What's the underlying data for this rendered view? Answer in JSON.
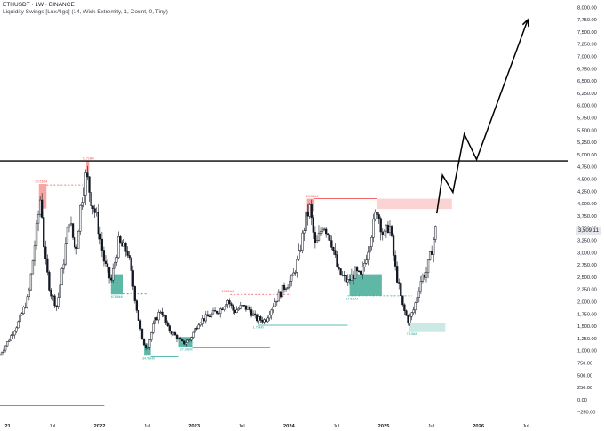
{
  "header": {
    "symbol_line": "ETHUSDT · 1W · BINANCE",
    "indicator_line": "Liquidity Swings [LuxAlgo] (14, Wick Extremity, 1, Count, 0, Tiny)"
  },
  "chart_data": {
    "type": "candlestick",
    "title": "ETHUSDT · 1W · BINANCE",
    "x_axis": {
      "tick_labels": [
        "21",
        "Jul",
        "2022",
        "Jul",
        "2023",
        "Jul",
        "2024",
        "Jul",
        "2025",
        "Jul",
        "2026",
        "Jul"
      ],
      "tick_times": [
        2021.0,
        2021.5,
        2022.0,
        2022.5,
        2023.0,
        2023.5,
        2024.0,
        2024.5,
        2025.0,
        2025.5,
        2026.0,
        2026.5
      ],
      "range": [
        2020.95,
        2026.95
      ]
    },
    "y_axis": {
      "range": [
        -400,
        8150
      ],
      "tick_values": [
        -250,
        0,
        250,
        500,
        750,
        1000,
        1250,
        1500,
        1750,
        2000,
        2250,
        2500,
        2750,
        3000,
        3250,
        3500,
        3750,
        4000,
        4250,
        4500,
        4750,
        5000,
        5250,
        5500,
        5750,
        6000,
        6250,
        6500,
        6750,
        7000,
        7250,
        7500,
        7750,
        8000
      ],
      "tick_labels": [
        "−250.00",
        "0.00",
        "250.00",
        "500.00",
        "750.00",
        "1,000.00",
        "1,250.00",
        "1,500.00",
        "1,750.00",
        "2,000.00",
        "2,250.00",
        "2,500.00",
        "2,750.00",
        "3,000.00",
        "3,250.00",
        "3,500.00",
        "3,750.00",
        "4,000.00",
        "4,250.00",
        "4,500.00",
        "4,750.00",
        "5,000.00",
        "5,250.00",
        "5,500.00",
        "5,750.00",
        "6,000.00",
        "6,250.00",
        "6,500.00",
        "6,750.00",
        "7,000.00",
        "7,250.00",
        "7,500.00",
        "7,750.00",
        "8,000.00"
      ]
    },
    "last_price": {
      "value": 3509.11,
      "label": "3,509.11"
    },
    "price_path": [
      [
        2020.95,
        920
      ],
      [
        2021.05,
        1250
      ],
      [
        2021.15,
        1600
      ],
      [
        2021.25,
        2100
      ],
      [
        2021.33,
        3400
      ],
      [
        2021.38,
        4200
      ],
      [
        2021.42,
        2900
      ],
      [
        2021.48,
        2200
      ],
      [
        2021.55,
        1900
      ],
      [
        2021.62,
        2800
      ],
      [
        2021.68,
        3700
      ],
      [
        2021.75,
        3000
      ],
      [
        2021.8,
        4000
      ],
      [
        2021.86,
        4600
      ],
      [
        2021.91,
        4100
      ],
      [
        2021.97,
        3700
      ],
      [
        2022.05,
        2800
      ],
      [
        2022.12,
        2400
      ],
      [
        2022.2,
        3200
      ],
      [
        2022.3,
        3000
      ],
      [
        2022.38,
        2000
      ],
      [
        2022.45,
        1200
      ],
      [
        2022.5,
        1050
      ],
      [
        2022.58,
        1600
      ],
      [
        2022.65,
        1850
      ],
      [
        2022.72,
        1450
      ],
      [
        2022.8,
        1300
      ],
      [
        2022.88,
        1150
      ],
      [
        2022.95,
        1220
      ],
      [
        2023.05,
        1600
      ],
      [
        2023.15,
        1700
      ],
      [
        2023.28,
        1850
      ],
      [
        2023.35,
        2050
      ],
      [
        2023.42,
        1800
      ],
      [
        2023.5,
        1900
      ],
      [
        2023.58,
        1850
      ],
      [
        2023.65,
        1650
      ],
      [
        2023.75,
        1620
      ],
      [
        2023.85,
        2000
      ],
      [
        2023.95,
        2300
      ],
      [
        2024.03,
        2450
      ],
      [
        2024.1,
        2900
      ],
      [
        2024.18,
        3700
      ],
      [
        2024.22,
        3900
      ],
      [
        2024.28,
        3100
      ],
      [
        2024.36,
        3600
      ],
      [
        2024.44,
        3300
      ],
      [
        2024.52,
        2600
      ],
      [
        2024.62,
        2400
      ],
      [
        2024.7,
        2600
      ],
      [
        2024.76,
        2500
      ],
      [
        2024.86,
        3300
      ],
      [
        2024.93,
        3900
      ],
      [
        2025.0,
        3300
      ],
      [
        2025.06,
        3600
      ],
      [
        2025.12,
        2700
      ],
      [
        2025.2,
        1900
      ],
      [
        2025.26,
        1600
      ],
      [
        2025.32,
        1850
      ],
      [
        2025.4,
        2500
      ],
      [
        2025.45,
        2600
      ],
      [
        2025.5,
        3000
      ],
      [
        2025.55,
        3509
      ]
    ],
    "zones": [
      {
        "name": "swing-high-2021a",
        "t0": 2021.36,
        "t1": 2021.44,
        "y0": 3900,
        "y1": 4400,
        "kind": "high-solid"
      },
      {
        "name": "swing-high-2021b",
        "t0": 2021.86,
        "t1": 2021.89,
        "y0": 4650,
        "y1": 4870,
        "kind": "high-solid"
      },
      {
        "name": "swing-high-2024",
        "t0": 2024.19,
        "t1": 2024.27,
        "y0": 3850,
        "y1": 4100,
        "kind": "high-solid"
      },
      {
        "name": "swing-high-2025",
        "t0": 2024.93,
        "t1": 2025.72,
        "y0": 3890,
        "y1": 4100,
        "kind": "high-faint"
      },
      {
        "name": "swing-low-2022a",
        "t0": 2022.12,
        "t1": 2022.25,
        "y0": 2150,
        "y1": 2560,
        "kind": "low-solid"
      },
      {
        "name": "swing-low-2022b",
        "t0": 2022.47,
        "t1": 2022.54,
        "y0": 900,
        "y1": 1150,
        "kind": "low-solid"
      },
      {
        "name": "swing-low-2022c",
        "t0": 2022.83,
        "t1": 2022.98,
        "y0": 1080,
        "y1": 1280,
        "kind": "low-solid"
      },
      {
        "name": "swing-low-2024",
        "t0": 2024.64,
        "t1": 2024.98,
        "y0": 2120,
        "y1": 2560,
        "kind": "low-solid"
      },
      {
        "name": "swing-low-2025",
        "t0": 2025.27,
        "t1": 2025.65,
        "y0": 1380,
        "y1": 1560,
        "kind": "low-faint"
      }
    ],
    "levels": [
      {
        "name": "resistance-level",
        "t0": 2020.95,
        "t1": 2026.95,
        "y": 4870,
        "style": "solid-black"
      },
      {
        "name": "liq-high-2021",
        "t0": 2021.44,
        "t1": 2021.86,
        "y": 4380,
        "style": "dashed-red"
      },
      {
        "name": "liq-high-2023",
        "t0": 2023.38,
        "t1": 2024.02,
        "y": 2150,
        "style": "dashed-red"
      },
      {
        "name": "liq-high-2024",
        "t0": 2024.27,
        "t1": 2024.93,
        "y": 4100,
        "style": "solid-red"
      },
      {
        "name": "liq-low-2022a",
        "t0": 2022.25,
        "t1": 2022.5,
        "y": 2160,
        "style": "dashed-teal"
      },
      {
        "name": "liq-low-2022b",
        "t0": 2022.54,
        "t1": 2022.83,
        "y": 880,
        "style": "solid-teal"
      },
      {
        "name": "liq-low-2022c",
        "t0": 2022.98,
        "t1": 2023.8,
        "y": 1060,
        "style": "solid-teal"
      },
      {
        "name": "liq-low-2023",
        "t0": 2023.67,
        "t1": 2024.62,
        "y": 1520,
        "style": "solid-teal"
      },
      {
        "name": "liq-low-2024",
        "t0": 2024.62,
        "t1": 2025.3,
        "y": 2120,
        "style": "dashed-teal"
      },
      {
        "name": "liq-low-2020",
        "t0": 2020.95,
        "t1": 2022.05,
        "y": -120,
        "style": "solid-teal"
      }
    ],
    "zone_labels": [
      {
        "name": "label-hi-2021a",
        "t": 2021.32,
        "y": 4430,
        "text": "20.51kM",
        "kind": "high"
      },
      {
        "name": "label-hi-2021b",
        "t": 2021.83,
        "y": 4900,
        "text": "1.71kM",
        "kind": "high"
      },
      {
        "name": "label-hi-2023",
        "t": 2023.29,
        "y": 2190,
        "text": "10.81kM",
        "kind": "high"
      },
      {
        "name": "label-hi-2024",
        "t": 2024.18,
        "y": 4130,
        "text": "18.82kM",
        "kind": "high"
      },
      {
        "name": "label-lo-2022a",
        "t": 2022.12,
        "y": 2080,
        "text": "67.88kM",
        "kind": "low"
      },
      {
        "name": "label-lo-2022b",
        "t": 2022.45,
        "y": 820,
        "text": "34.76kM",
        "kind": "low"
      },
      {
        "name": "label-lo-2022c",
        "t": 2022.85,
        "y": 1000,
        "text": "27.38kM",
        "kind": "low"
      },
      {
        "name": "label-lo-2023",
        "t": 2023.62,
        "y": 1460,
        "text": "1.76kM",
        "kind": "low"
      },
      {
        "name": "label-lo-2024",
        "t": 2024.6,
        "y": 2040,
        "text": "34.61kM",
        "kind": "low"
      },
      {
        "name": "label-lo-2025",
        "t": 2025.24,
        "y": 1320,
        "text": "7.13kM",
        "kind": "low"
      }
    ],
    "projection": {
      "points": [
        [
          2025.56,
          3800
        ],
        [
          2025.62,
          4580
        ],
        [
          2025.73,
          4230
        ],
        [
          2025.85,
          5420
        ],
        [
          2025.98,
          4900
        ],
        [
          2026.52,
          7750
        ]
      ],
      "arrowhead": true
    },
    "colors": {
      "bull_candle": "#131722",
      "high_zone": "#f7a6a6",
      "high_zone_faint": "#fbd3d3",
      "low_zone": "#5fb8a6",
      "low_zone_faint": "#cde9e4",
      "high_line": "#ef5350",
      "low_line": "#26a69a",
      "resistance": "#000000",
      "axis_text": "#131722"
    }
  }
}
